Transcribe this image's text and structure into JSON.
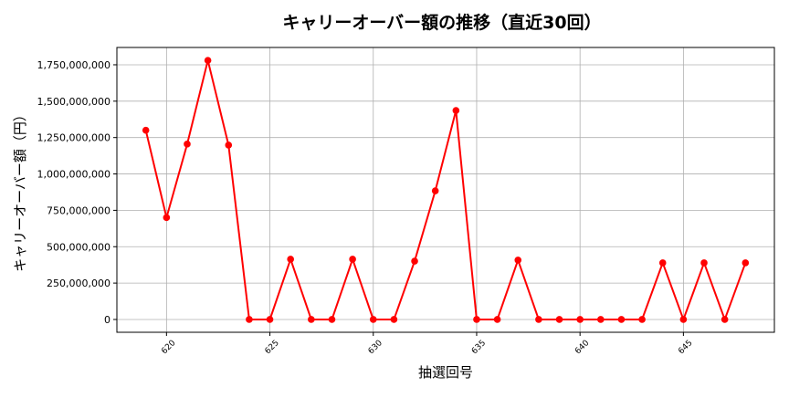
{
  "chart_data": {
    "type": "line",
    "title": "キャリーオーバー額の推移（直近30回）",
    "xlabel": "抽選回号",
    "ylabel": "キャリーオーバー額（円）",
    "x": [
      619,
      620,
      621,
      622,
      623,
      624,
      625,
      626,
      627,
      628,
      629,
      630,
      631,
      632,
      633,
      634,
      635,
      636,
      637,
      638,
      639,
      640,
      641,
      642,
      643,
      644,
      645,
      646,
      647,
      648
    ],
    "values": [
      1300000000,
      700000000,
      1205000000,
      1780000000,
      1198000000,
      0,
      0,
      414000000,
      0,
      0,
      414000000,
      0,
      0,
      401000000,
      884000000,
      1436000000,
      0,
      0,
      408000000,
      0,
      0,
      0,
      0,
      0,
      0,
      389000000,
      0,
      389000000,
      0,
      389000000
    ],
    "xlim": [
      617.6,
      649.4
    ],
    "ylim": [
      -88000000,
      1869000000
    ],
    "xticks": [
      620,
      625,
      630,
      635,
      640,
      645
    ],
    "xtick_labels": [
      "620",
      "625",
      "630",
      "635",
      "640",
      "645"
    ],
    "yticks": [
      0,
      250000000,
      500000000,
      750000000,
      1000000000,
      1250000000,
      1500000000,
      1750000000
    ],
    "ytick_labels": [
      "0",
      "250,000,000",
      "500,000,000",
      "750,000,000",
      "1,000,000,000",
      "1,250,000,000",
      "1,500,000,000",
      "1,750,000,000"
    ],
    "grid": true,
    "line_color": "#ff0000",
    "marker": "circle"
  }
}
